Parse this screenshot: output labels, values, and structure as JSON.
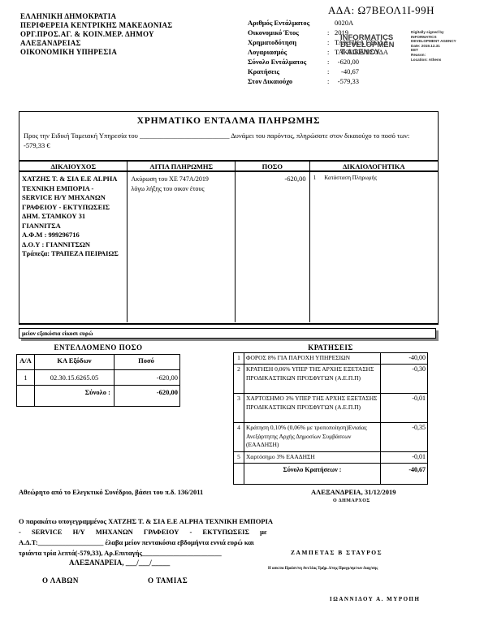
{
  "colors": {
    "shadow": "#8a8a8a",
    "watermark_text": "#3d3d3d",
    "ink": "#000000",
    "paper": "#ffffff"
  },
  "header_left": {
    "lines": [
      "ΕΛΛΗΝΙΚΗ ΔΗΜΟΚΡΑΤΙΑ",
      "ΠΕΡΙΦΕΡΕΙΑ ΚΕΝΤΡΙΚΗΣ ΜΑΚΕΔΟΝΙΑΣ",
      "ΟΡΓ.ΠΡΟΣ.ΑΓ. &  ΚΟΙΝ.ΜΕΡ. ΔΗΜΟΥ",
      "ΑΛΕΞΑΝΔΡΕΙΑΣ",
      "ΟΙΚΟΝΟΜΙΚΗ ΥΠΗΡΕΣΙΑ"
    ]
  },
  "ada": {
    "code": "ΑΔΑ: Ω7ΒΕΟΛ1Ι-99Η"
  },
  "order_fields": {
    "rows": [
      {
        "label": "Αριθμός Εντάλματος",
        "sep": "",
        "value": "0020Α"
      },
      {
        "label": "Οικονομικό Έτος",
        "sep": ":",
        "value": "2019"
      },
      {
        "label": "Χρηματοδότηση",
        "sep": ":",
        "value": "ΤΑΚΤΙΚΑ ΕΣΟΔΑ"
      },
      {
        "label": "Λογαριασμός",
        "sep": ":",
        "value": "ΤΑΚΤΙΚΑ ΕΣΟΔΑ"
      },
      {
        "label": "Σύνολο Εντάλματος",
        "sep": ":",
        "value": "-620,00"
      },
      {
        "label": "Κρατήσεις",
        "sep": ":",
        "value": "-40,67"
      },
      {
        "label": "Στον Δικαιούχο",
        "sep": ":",
        "value": "-579,33"
      }
    ]
  },
  "stamp": {
    "agency_lines": [
      "INFORMATICS",
      "DEVELOPMEN",
      "T AGENCY"
    ],
    "detail_lines": [
      "Digitally signed by",
      "INFORMATICS",
      "DEVELOPMENT AGENCY",
      "Date: 2019.12.31",
      "EET",
      "Reason:",
      "Location: Athens"
    ]
  },
  "order_box": {
    "title": "ΧΡΗΜΑΤΙΚΟ ΕΝΤΑΛΜΑ ΠΛΗΡΩΜΗΣ",
    "to_prefix": "Προς την Ειδική Ταμειακή Υπηρεσία του",
    "blank": "__________________________",
    "instruction": "Δυνάμει του παρόντος, πληρώσατε στον δικαιούχο το ποσό των:",
    "amount_line": "-579,33 €"
  },
  "main_table": {
    "headers": [
      "ΔΙΚΑΙΟΥΧΟΣ",
      "ΑΙΤΙΑ ΠΛΗΡΩΜΗΣ",
      "ΠΟΣΟ",
      "ΔΙΚΑΙΟΛΟΓΗΤΙΚΑ"
    ],
    "beneficiary_lines": [
      "ΧΑΤΖΗΣ Τ. & ΣΙΑ Ε.Ε ALPHA",
      "ΤΕΧΝΙΚΗ ΕΜΠΟΡΙΑ -",
      "SERVICE Η/Υ ΜΗΧΑΝΩΝ",
      "ΓΡΑΦΕΙΟΥ - ΕΚΤΥΠΩΣΕΙΣ",
      "ΔΗΜ. ΣΤΑΜΚΟΥ 31",
      "ΓΙΑΝΝΙΤΣΑ",
      "Α.Φ.Μ : 999296716",
      "Δ.Ο.Υ : ΓΙΑΝΝΙΤΣΩΝ",
      "Τράπεζα: ΤΡΑΠΕΖΑ ΠΕΙΡΑΙΩΣ"
    ],
    "reason_lines": [
      "Ακύρωση του ΧΕ 747Α/2019",
      "λόγω λήξης του οικον έτους"
    ],
    "amount": "-620,00",
    "just_no": "1",
    "just_text": "Κατάσταση Πληρωμής"
  },
  "amount_in_words": "μείον εξακόσια είκοσι ευρώ",
  "committed": {
    "title": "ΕΝΤΕΛΛΟΜΕΝΟ ΠΟΣΟ",
    "headers": [
      "Α/Α",
      "ΚΑ Εξόδων",
      "Ποσό"
    ],
    "row": {
      "aa": "1",
      "code": "02.30.15.6265.05",
      "amount": "-620,00"
    },
    "total_label": "Σύνολο :",
    "total": "-620,00"
  },
  "deductions": {
    "title": "ΚΡΑΤΗΣΕΙΣ",
    "rows": [
      {
        "no": "1",
        "desc": "ΦΟΡΟΣ 8% ΓΙΑ ΠΑΡΟΧΗ ΥΠΗΡΕΣΙΩΝ",
        "amount": "-40,00"
      },
      {
        "no": "2",
        "desc": "ΚΡΑΤΗΣΗ 0,06% ΥΠΕΡ ΤΗΣ ΑΡΧΗΣ ΕΞΕΤΑΣΗΣ ΠΡΟΔΙΚΑΣΤΙΚΩΝ ΠΡΟΣΦΥΓΩΝ (Α.Ε.Π.Π)",
        "amount": "-0,30"
      },
      {
        "no": "3",
        "desc": "ΧΑΡΤΟΣΗΜΟ 3% ΥΠΕΡ ΤΗΣ ΑΡΧΗΣ ΕΞΕΤΑΣΗΣ ΠΡΟΔΙΚΑΣΤΙΚΩΝ ΠΡΟΣΦΥΓΩΝ (Α.Ε.Π.Π)",
        "amount": "-0,01"
      },
      {
        "no": "4",
        "desc": "Κράτηση 0,10% (0,06% με τροποποίηση)Ενιαίας Ανεξάρτητης Αρχής Δημοσίων Συμβάσεων (ΕΑΑΔΗΣΗ)",
        "amount": "-0,35"
      },
      {
        "no": "5",
        "desc": "Χαρτόσημο 3% ΕΑΑΔΗΣΗ",
        "amount": "-0,01"
      }
    ],
    "total_label": "Σύνολο Κρατήσεων :",
    "total": "-40,67"
  },
  "footer": {
    "audit_note": "Αθεώρητο από το Ελεγκτικό Συνέδριο, βάσει του π.δ. 136/2011",
    "place_date": "ΑΛΕΞΑΝΔΡΕΙΑ, 31/12/2019",
    "mayor_title": "Ο ΔΗΜΑΡΧΟΣ",
    "receipt_lines": [
      "Ο παρακάτω υπογεγραμμένος ΧΑΤΖΗΣ Τ. & ΣΙΑ Ε.Ε ALPHA ΤΕΧΝΙΚΗ ΕΜΠΟΡΙΑ",
      "- SERVICE Η/Υ ΜΗΧΑΝΩΝ ΓΡΑΦΕΙΟΥ - ΕΚΤΥΠΩΣΕΙΣ με",
      "Α.Δ.Τ:___________________ έλαβα μείον πεντακόσια εβδομήντα εννιά ευρώ  και",
      "τριάντα τρία λεπτά(-579,33), Αρ.Επιταγής_______________________"
    ],
    "place_date_blank": "ΑΛΕΞΑΝΔΡΕΙΑ,    ___/___/_____",
    "receiver_label": "Ο ΛΑΒΩΝ",
    "cashier_label": "Ο ΤΑΜΙΑΣ",
    "signer_name": "ΖΑΜΠΕΤΑΣ Β ΣΤΑΥΡΟΣ",
    "signer_title": "Η ασκ/σα Προϊστ/νη Αντ/λίας Τμήμ. Δ/νης Προγρ/σμ/νων Διαχ/σης",
    "second_signer": "ΙΩΑΝΝΙΔΟΥ Α. ΜΥΡΟΠΗ"
  }
}
